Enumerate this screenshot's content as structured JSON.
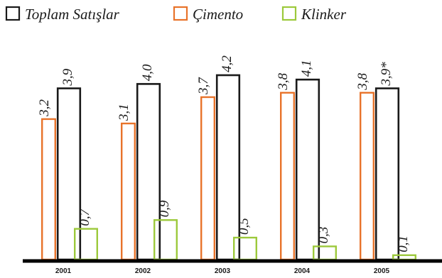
{
  "chart_data": {
    "type": "bar",
    "title": "",
    "xlabel": "",
    "ylabel": "",
    "legend_position": "top-left",
    "grid": false,
    "ylim": [
      0,
      4.5
    ],
    "categories": [
      "2001",
      "2002",
      "2003",
      "2004",
      "2005"
    ],
    "series": [
      {
        "name": "Çimento",
        "color": "#e8732a",
        "values": [
          3.2,
          3.1,
          3.7,
          3.8,
          3.8
        ],
        "labels": [
          "3,2",
          "3,1",
          "3,7",
          "3,8",
          "3,8"
        ]
      },
      {
        "name": "Toplam Satışlar",
        "color": "#1a1a1a",
        "values": [
          3.9,
          4.0,
          4.2,
          4.1,
          3.9
        ],
        "labels": [
          "3,9",
          "4,0",
          "4,2",
          "4,1",
          "3,9*"
        ]
      },
      {
        "name": "Klinker",
        "color": "#9cc93b",
        "values": [
          0.7,
          0.9,
          0.5,
          0.3,
          0.1
        ],
        "labels": [
          "0,7",
          "0,9",
          "0,5",
          "0,3",
          "0,1"
        ]
      }
    ],
    "legend_order": [
      1,
      0,
      2
    ]
  }
}
